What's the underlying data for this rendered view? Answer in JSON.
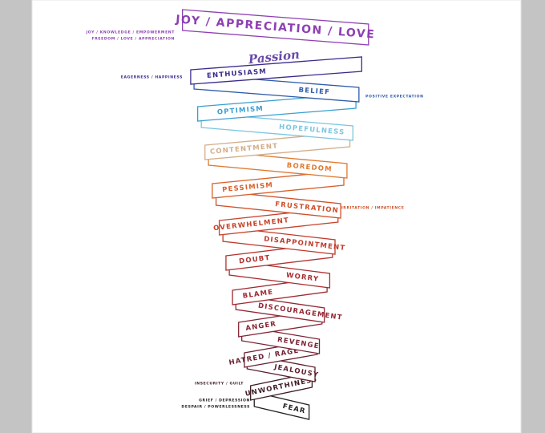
{
  "levels": [
    {
      "label": "JOY / APPRECIATION / LOVE",
      "color": "#8e3fb3"
    },
    {
      "label": "ENTHUSIASM",
      "color": "#3a2d8c"
    },
    {
      "label": "BELIEF",
      "color": "#2f5ba8"
    },
    {
      "label": "OPTIMISM",
      "color": "#3a9fd0"
    },
    {
      "label": "HOPEFULNESS",
      "color": "#7cc6df"
    },
    {
      "label": "CONTENTMENT",
      "color": "#d3ae88"
    },
    {
      "label": "BOREDOM",
      "color": "#e07a30"
    },
    {
      "label": "PESSIMISM",
      "color": "#d9602a"
    },
    {
      "label": "FRUSTRATION",
      "color": "#cf502a"
    },
    {
      "label": "OVERWHELMENT",
      "color": "#c8422b"
    },
    {
      "label": "DISAPPOINTMENT",
      "color": "#c0392b"
    },
    {
      "label": "DOUBT",
      "color": "#b23230"
    },
    {
      "label": "WORRY",
      "color": "#a82d30"
    },
    {
      "label": "BLAME",
      "color": "#9e2a32"
    },
    {
      "label": "DISCOURAGEMENT",
      "color": "#922834"
    },
    {
      "label": "ANGER",
      "color": "#862635"
    },
    {
      "label": "REVENGE",
      "color": "#7a2435"
    },
    {
      "label": "HATRED / RAGE",
      "color": "#6c2232"
    },
    {
      "label": "JEALOUSY",
      "color": "#5c1e2c"
    },
    {
      "label": "UNWORTHINESS",
      "color": "#3c1a22"
    },
    {
      "label": "FEAR",
      "color": "#222222"
    }
  ],
  "script_word": "Passion",
  "notes": [
    {
      "lines": [
        "JOY / KNOWLEDGE / EMPOWERMENT",
        "FREEDOM / LOVE / APPRECIATION"
      ],
      "color": "#8e3fb3"
    },
    {
      "lines": [
        "EAGERNESS / HAPPINESS"
      ],
      "color": "#3a2d8c"
    },
    {
      "lines": [
        "POSITIVE EXPECTATION"
      ],
      "color": "#2f5ba8"
    },
    {
      "lines": [
        "IRRITATION / IMPATIENCE"
      ],
      "color": "#cf502a"
    },
    {
      "lines": [
        "INSECURITY / GUILT"
      ],
      "color": "#3c1a22"
    },
    {
      "lines": [
        "GRIEF / DEPRESSION",
        "DESPAIR / POWERLESSNESS"
      ],
      "color": "#222222"
    }
  ]
}
